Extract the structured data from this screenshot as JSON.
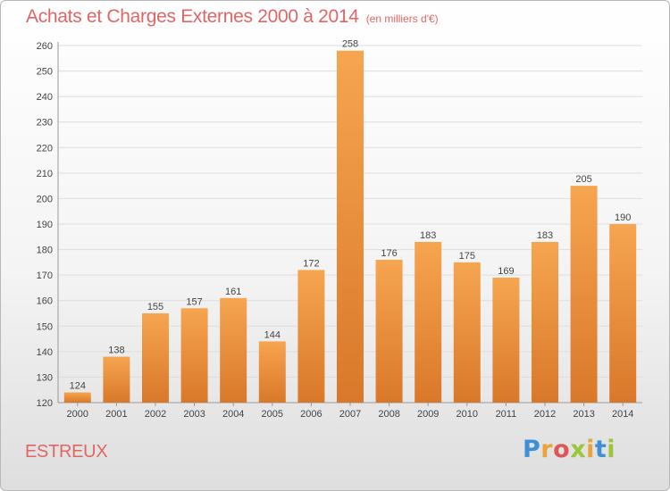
{
  "header": {
    "title": "Achats et Charges Externes 2000 à 2014",
    "subtitle": "(en milliers d'€)"
  },
  "footer": {
    "commune": "ESTREUX",
    "brand_letters": [
      "P",
      "r",
      "o",
      "x",
      "i",
      "t",
      "i"
    ],
    "brand_colors": [
      "#3d8fd6",
      "#e8a33b",
      "#e05656",
      "#9bc53d",
      "#e8a33b",
      "#3d8fd6",
      "#9bc53d"
    ]
  },
  "colors": {
    "bar_light": "#f6a550",
    "bar_dark": "#d9782a",
    "accent": "#e06666",
    "grid": "#dddddd"
  },
  "chart_data": {
    "type": "bar",
    "title": "Achats et Charges Externes 2000 à 2014",
    "subtitle": "(en milliers d'€)",
    "categories": [
      "2000",
      "2001",
      "2002",
      "2003",
      "2004",
      "2005",
      "2006",
      "2007",
      "2008",
      "2009",
      "2010",
      "2011",
      "2012",
      "2013",
      "2014"
    ],
    "values": [
      124,
      138,
      155,
      157,
      161,
      144,
      172,
      258,
      176,
      183,
      175,
      169,
      183,
      205,
      190
    ],
    "ylim": [
      120,
      260
    ],
    "yticks": [
      120,
      130,
      140,
      150,
      160,
      170,
      180,
      190,
      200,
      210,
      220,
      230,
      240,
      250,
      260
    ],
    "grid": true
  }
}
